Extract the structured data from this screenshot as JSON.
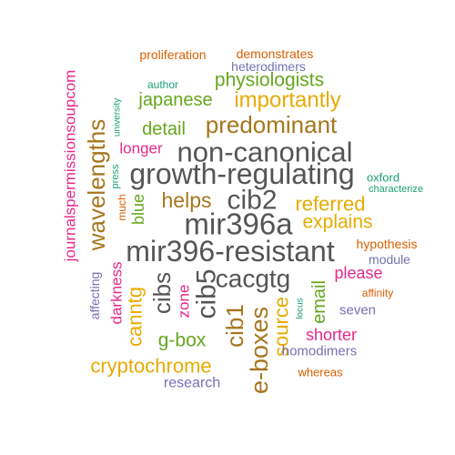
{
  "palette": {
    "gray": "#555555",
    "brown": "#a6761d",
    "yellow": "#e6ab02",
    "green": "#66a61e",
    "magenta": "#e7298a",
    "purple": "#7570b3",
    "orange": "#d95f02",
    "teal": "#1b9e77"
  },
  "words": [
    {
      "id": "mir396-resistant",
      "text": "mir396-resistant",
      "color": "gray"
    },
    {
      "id": "mir396a",
      "text": "mir396a",
      "color": "gray"
    },
    {
      "id": "growth-regulating",
      "text": "growth-regulating",
      "color": "gray"
    },
    {
      "id": "non-canonical",
      "text": "non-canonical",
      "color": "gray"
    },
    {
      "id": "cib2",
      "text": "cib2",
      "color": "gray"
    },
    {
      "id": "cacgtg",
      "text": "cacgtg",
      "color": "gray"
    },
    {
      "id": "cib5",
      "text": "cib5",
      "color": "gray"
    },
    {
      "id": "cibs",
      "text": "cibs",
      "color": "gray"
    },
    {
      "id": "cib1",
      "text": "cib1",
      "color": "brown"
    },
    {
      "id": "e-boxes",
      "text": "e-boxes",
      "color": "brown"
    },
    {
      "id": "predominant",
      "text": "predominant",
      "color": "brown"
    },
    {
      "id": "wavelengths",
      "text": "wavelengths",
      "color": "brown"
    },
    {
      "id": "helps",
      "text": "helps",
      "color": "brown"
    },
    {
      "id": "importantly",
      "text": "importantly",
      "color": "yellow"
    },
    {
      "id": "referred",
      "text": "referred",
      "color": "yellow"
    },
    {
      "id": "explains",
      "text": "explains",
      "color": "yellow"
    },
    {
      "id": "cryptochrome",
      "text": "cryptochrome",
      "color": "yellow"
    },
    {
      "id": "canntg",
      "text": "canntg",
      "color": "yellow"
    },
    {
      "id": "source",
      "text": "source",
      "color": "yellow"
    },
    {
      "id": "physiologists",
      "text": "physiologists",
      "color": "green"
    },
    {
      "id": "japanese",
      "text": "japanese",
      "color": "green"
    },
    {
      "id": "detail",
      "text": "detail",
      "color": "green"
    },
    {
      "id": "blue",
      "text": "blue",
      "color": "green"
    },
    {
      "id": "g-box",
      "text": "g-box",
      "color": "green"
    },
    {
      "id": "email",
      "text": "email",
      "color": "green"
    },
    {
      "id": "journalspermissionsoupcom",
      "text": "journalspermissionsoupcom",
      "color": "magenta"
    },
    {
      "id": "longer",
      "text": "longer",
      "color": "magenta"
    },
    {
      "id": "darkness",
      "text": "darkness",
      "color": "magenta"
    },
    {
      "id": "zone",
      "text": "zone",
      "color": "magenta"
    },
    {
      "id": "please",
      "text": "please",
      "color": "magenta"
    },
    {
      "id": "shorter",
      "text": "shorter",
      "color": "magenta"
    },
    {
      "id": "heterodimers",
      "text": "heterodimers",
      "color": "purple"
    },
    {
      "id": "affecting",
      "text": "affecting",
      "color": "purple"
    },
    {
      "id": "module",
      "text": "module",
      "color": "purple"
    },
    {
      "id": "seven",
      "text": "seven",
      "color": "purple"
    },
    {
      "id": "homodimers",
      "text": "homodimers",
      "color": "purple"
    },
    {
      "id": "research",
      "text": "research",
      "color": "purple"
    },
    {
      "id": "proliferation",
      "text": "proliferation",
      "color": "orange"
    },
    {
      "id": "demonstrates",
      "text": "demonstrates",
      "color": "orange"
    },
    {
      "id": "much",
      "text": "much",
      "color": "orange"
    },
    {
      "id": "hypothesis",
      "text": "hypothesis",
      "color": "orange"
    },
    {
      "id": "affinity",
      "text": "affinity",
      "color": "orange"
    },
    {
      "id": "whereas",
      "text": "whereas",
      "color": "orange"
    },
    {
      "id": "author",
      "text": "author",
      "color": "teal"
    },
    {
      "id": "university",
      "text": "university",
      "color": "teal"
    },
    {
      "id": "press",
      "text": "press",
      "color": "teal"
    },
    {
      "id": "oxford",
      "text": "oxford",
      "color": "teal"
    },
    {
      "id": "characterize",
      "text": "characterize",
      "color": "teal"
    },
    {
      "id": "locus",
      "text": "locus",
      "color": "teal"
    }
  ]
}
